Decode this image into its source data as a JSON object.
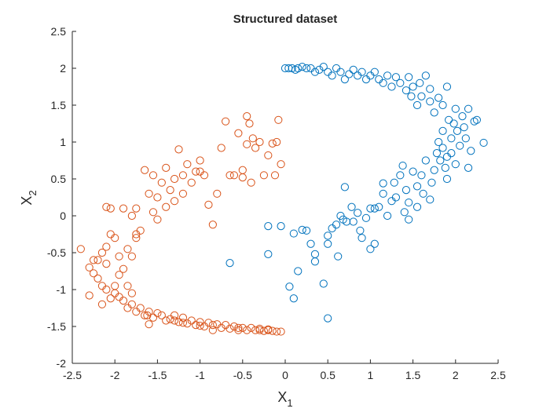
{
  "chart_data": {
    "type": "scatter",
    "title": "Structured dataset",
    "xlabel": {
      "base": "X",
      "sub": "1"
    },
    "ylabel": {
      "base": "X",
      "sub": "2"
    },
    "xlim": [
      -2.5,
      2.5
    ],
    "ylim": [
      -2,
      2.5
    ],
    "xticks": [
      "-2.5",
      "-2",
      "-1.5",
      "-1",
      "-0.5",
      "0",
      "0.5",
      "1",
      "1.5",
      "2",
      "2.5"
    ],
    "yticks": [
      "-2",
      "-1.5",
      "-1",
      "-0.5",
      "0",
      "0.5",
      "1",
      "1.5",
      "2",
      "2.5"
    ],
    "grid": false,
    "marker": "circle",
    "series": [
      {
        "color": "#0072BD",
        "points": [
          [
            -0.65,
            -0.64
          ],
          [
            -0.2,
            -0.14
          ],
          [
            -0.2,
            -0.52
          ],
          [
            -0.05,
            -0.14
          ],
          [
            0.05,
            -0.96
          ],
          [
            0.1,
            -0.24
          ],
          [
            0.1,
            -1.12
          ],
          [
            0.15,
            -0.75
          ],
          [
            0.2,
            -0.19
          ],
          [
            0.25,
            -0.2
          ],
          [
            0.3,
            -0.38
          ],
          [
            0.35,
            -0.52
          ],
          [
            0.35,
            -0.62
          ],
          [
            0.45,
            -0.92
          ],
          [
            0.5,
            -0.38
          ],
          [
            0.5,
            -0.27
          ],
          [
            0.5,
            -1.39
          ],
          [
            0.55,
            -0.17
          ],
          [
            0.6,
            -0.12
          ],
          [
            0.62,
            -0.55
          ],
          [
            0.65,
            0.0
          ],
          [
            0.68,
            -0.05
          ],
          [
            0.7,
            0.39
          ],
          [
            0.72,
            -0.08
          ],
          [
            0.78,
            0.12
          ],
          [
            0.8,
            -0.08
          ],
          [
            0.85,
            0.04
          ],
          [
            0.88,
            -0.2
          ],
          [
            0.9,
            -0.3
          ],
          [
            0.95,
            -0.03
          ],
          [
            1.0,
            0.1
          ],
          [
            1.0,
            -0.45
          ],
          [
            1.05,
            -0.38
          ],
          [
            1.05,
            0.1
          ],
          [
            1.1,
            0.12
          ],
          [
            1.15,
            0.44
          ],
          [
            1.15,
            0.3
          ],
          [
            1.2,
            0.0
          ],
          [
            1.25,
            0.2
          ],
          [
            1.28,
            0.45
          ],
          [
            1.3,
            0.25
          ],
          [
            1.35,
            0.55
          ],
          [
            1.38,
            0.68
          ],
          [
            1.4,
            0.05
          ],
          [
            1.42,
            0.35
          ],
          [
            1.45,
            -0.05
          ],
          [
            1.45,
            0.18
          ],
          [
            1.5,
            0.6
          ],
          [
            1.55,
            0.4
          ],
          [
            1.55,
            0.12
          ],
          [
            1.6,
            0.55
          ],
          [
            1.62,
            0.3
          ],
          [
            1.65,
            0.75
          ],
          [
            1.7,
            0.22
          ],
          [
            1.72,
            0.45
          ],
          [
            1.75,
            0.62
          ],
          [
            1.78,
            0.85
          ],
          [
            1.8,
            1.0
          ],
          [
            1.82,
            0.75
          ],
          [
            1.85,
            1.15
          ],
          [
            1.85,
            0.92
          ],
          [
            1.88,
            0.65
          ],
          [
            1.9,
            0.5
          ],
          [
            1.9,
            0.8
          ],
          [
            1.92,
            1.3
          ],
          [
            1.95,
            1.05
          ],
          [
            1.95,
            0.85
          ],
          [
            1.98,
            1.25
          ],
          [
            2.0,
            1.45
          ],
          [
            2.0,
            0.7
          ],
          [
            2.02,
            1.15
          ],
          [
            2.05,
            0.95
          ],
          [
            2.08,
            1.35
          ],
          [
            2.1,
            1.2
          ],
          [
            2.12,
            1.05
          ],
          [
            2.15,
            0.65
          ],
          [
            2.15,
            1.45
          ],
          [
            2.18,
            0.88
          ],
          [
            2.22,
            1.28
          ],
          [
            2.25,
            1.3
          ],
          [
            2.33,
            0.99
          ],
          [
            1.9,
            1.75
          ],
          [
            1.85,
            1.5
          ],
          [
            1.8,
            1.6
          ],
          [
            1.75,
            1.4
          ],
          [
            1.7,
            1.55
          ],
          [
            1.7,
            1.72
          ],
          [
            1.65,
            1.9
          ],
          [
            1.6,
            1.62
          ],
          [
            1.58,
            1.8
          ],
          [
            1.55,
            1.5
          ],
          [
            1.5,
            1.75
          ],
          [
            1.48,
            1.62
          ],
          [
            1.45,
            1.88
          ],
          [
            1.42,
            1.7
          ],
          [
            1.35,
            1.8
          ],
          [
            1.3,
            1.88
          ],
          [
            1.25,
            1.75
          ],
          [
            1.2,
            1.9
          ],
          [
            1.15,
            1.8
          ],
          [
            1.1,
            1.85
          ],
          [
            1.05,
            1.95
          ],
          [
            1.0,
            1.9
          ],
          [
            0.95,
            1.85
          ],
          [
            0.9,
            1.95
          ],
          [
            0.85,
            1.9
          ],
          [
            0.8,
            1.98
          ],
          [
            0.75,
            1.92
          ],
          [
            0.7,
            1.85
          ],
          [
            0.65,
            1.95
          ],
          [
            0.6,
            2.0
          ],
          [
            0.55,
            1.9
          ],
          [
            0.5,
            1.95
          ],
          [
            0.45,
            2.02
          ],
          [
            0.4,
            1.98
          ],
          [
            0.35,
            1.95
          ],
          [
            0.3,
            2.0
          ],
          [
            0.25,
            2.0
          ],
          [
            0.2,
            2.02
          ],
          [
            0.15,
            2.0
          ],
          [
            0.12,
            1.98
          ],
          [
            0.08,
            2.0
          ],
          [
            0.04,
            2.0
          ],
          [
            0.0,
            2.0
          ]
        ]
      },
      {
        "color": "#D95319",
        "points": [
          [
            -0.1,
            -1.57
          ],
          [
            -0.15,
            -1.56
          ],
          [
            -0.2,
            -1.54
          ],
          [
            -0.25,
            -1.56
          ],
          [
            -0.3,
            -1.53
          ],
          [
            -0.35,
            -1.55
          ],
          [
            -0.4,
            -1.52
          ],
          [
            -0.45,
            -1.55
          ],
          [
            -0.5,
            -1.52
          ],
          [
            -0.55,
            -1.55
          ],
          [
            -0.6,
            -1.5
          ],
          [
            -0.65,
            -1.53
          ],
          [
            -0.7,
            -1.48
          ],
          [
            -0.75,
            -1.52
          ],
          [
            -0.8,
            -1.47
          ],
          [
            -0.85,
            -1.55
          ],
          [
            -0.9,
            -1.45
          ],
          [
            -0.95,
            -1.5
          ],
          [
            -1.0,
            -1.44
          ],
          [
            -1.05,
            -1.48
          ],
          [
            -1.1,
            -1.42
          ],
          [
            -1.15,
            -1.46
          ],
          [
            -1.2,
            -1.38
          ],
          [
            -1.25,
            -1.44
          ],
          [
            -1.3,
            -1.35
          ],
          [
            -1.35,
            -1.4
          ],
          [
            -1.4,
            -1.42
          ],
          [
            -1.45,
            -1.35
          ],
          [
            -1.5,
            -1.32
          ],
          [
            -1.55,
            -1.38
          ],
          [
            -1.6,
            -1.3
          ],
          [
            -1.65,
            -1.35
          ],
          [
            -1.7,
            -1.25
          ],
          [
            -1.75,
            -1.3
          ],
          [
            -1.8,
            -1.2
          ],
          [
            -1.85,
            -1.25
          ],
          [
            -1.9,
            -1.15
          ],
          [
            -1.95,
            -1.1
          ],
          [
            -2.0,
            -1.05
          ],
          [
            -2.05,
            -1.12
          ],
          [
            -2.1,
            -1.0
          ],
          [
            -2.15,
            -0.95
          ],
          [
            -2.2,
            -0.85
          ],
          [
            -2.25,
            -0.78
          ],
          [
            -2.3,
            -0.7
          ],
          [
            -2.2,
            -0.6
          ],
          [
            -2.15,
            -0.5
          ],
          [
            -2.1,
            -0.42
          ],
          [
            -2.05,
            -0.25
          ],
          [
            -2.0,
            -0.3
          ],
          [
            -2.05,
            0.1
          ],
          [
            -2.1,
            0.12
          ],
          [
            -2.4,
            -0.45
          ],
          [
            -2.3,
            -1.08
          ],
          [
            -2.25,
            -0.6
          ],
          [
            -1.95,
            -0.55
          ],
          [
            -1.9,
            -0.72
          ],
          [
            -1.85,
            -0.95
          ],
          [
            -1.8,
            -1.05
          ],
          [
            -1.75,
            -0.3
          ],
          [
            -1.7,
            -0.2
          ],
          [
            -1.75,
            0.1
          ],
          [
            -1.8,
            0.0
          ],
          [
            -1.9,
            0.1
          ],
          [
            -1.65,
            0.62
          ],
          [
            -1.6,
            0.3
          ],
          [
            -1.55,
            0.55
          ],
          [
            -1.55,
            0.05
          ],
          [
            -1.5,
            -0.05
          ],
          [
            -1.5,
            0.25
          ],
          [
            -1.45,
            0.45
          ],
          [
            -1.4,
            0.65
          ],
          [
            -1.4,
            0.12
          ],
          [
            -1.35,
            0.35
          ],
          [
            -1.3,
            0.5
          ],
          [
            -1.3,
            0.2
          ],
          [
            -1.25,
            0.9
          ],
          [
            -1.2,
            0.55
          ],
          [
            -1.2,
            0.3
          ],
          [
            -1.15,
            0.7
          ],
          [
            -1.1,
            0.45
          ],
          [
            -1.05,
            0.6
          ],
          [
            -1.0,
            0.75
          ],
          [
            -1.0,
            0.6
          ],
          [
            -0.95,
            0.55
          ],
          [
            -0.9,
            0.15
          ],
          [
            -0.85,
            -0.12
          ],
          [
            -0.8,
            0.3
          ],
          [
            -0.75,
            0.92
          ],
          [
            -0.7,
            1.28
          ],
          [
            -0.65,
            0.55
          ],
          [
            -0.6,
            0.55
          ],
          [
            -0.55,
            1.12
          ],
          [
            -0.5,
            0.62
          ],
          [
            -0.5,
            0.52
          ],
          [
            -0.45,
            0.97
          ],
          [
            -0.45,
            1.35
          ],
          [
            -0.42,
            1.25
          ],
          [
            -0.4,
            0.45
          ],
          [
            -0.38,
            1.05
          ],
          [
            -0.35,
            0.92
          ],
          [
            -0.3,
            1.0
          ],
          [
            -0.25,
            0.55
          ],
          [
            -0.2,
            0.82
          ],
          [
            -0.15,
            0.98
          ],
          [
            -0.1,
            1.0
          ],
          [
            -0.12,
            0.55
          ],
          [
            -0.05,
            0.7
          ],
          [
            -0.08,
            1.3
          ],
          [
            -1.75,
            -0.25
          ],
          [
            -1.8,
            -0.55
          ],
          [
            -1.85,
            -0.45
          ],
          [
            -1.95,
            -0.8
          ],
          [
            -2.0,
            -0.95
          ],
          [
            -2.1,
            -0.65
          ],
          [
            -2.15,
            -1.2
          ],
          [
            -1.6,
            -1.47
          ],
          [
            -1.62,
            -1.35
          ],
          [
            -1.3,
            -1.42
          ],
          [
            -1.2,
            -1.45
          ],
          [
            -1.0,
            -1.49
          ],
          [
            -0.85,
            -1.48
          ],
          [
            -0.55,
            -1.52
          ],
          [
            -0.3,
            -1.55
          ],
          [
            -0.2,
            -1.55
          ],
          [
            -0.05,
            -1.57
          ]
        ]
      }
    ]
  }
}
